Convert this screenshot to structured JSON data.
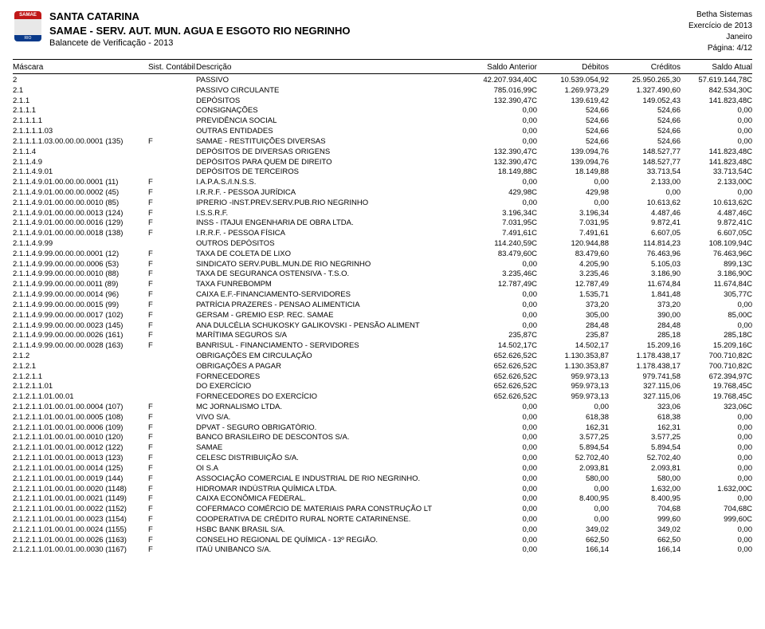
{
  "header": {
    "line1": "SANTA CATARINA",
    "line2": "SAMAE - SERV. AUT. MUN. AGUA E ESGOTO RIO NEGRINHO",
    "line3": "Balancete de Verificação - 2013",
    "logo_top": "SAMAE",
    "logo_bot": "RIO NEGRINHO - SC",
    "right1": "Betha Sistemas",
    "right2": "Exercício de 2013",
    "right3": "Janeiro",
    "right4": "Página: 4/12"
  },
  "columns": {
    "mask": "Máscara",
    "sist": "Sist. Contábil",
    "desc": "Descrição",
    "ant": "Saldo Anterior",
    "deb": "Débitos",
    "cred": "Créditos",
    "atu": "Saldo Atual"
  },
  "rows": [
    {
      "m": "2",
      "s": "",
      "d": "PASSIVO",
      "a": "42.207.934,40C",
      "b": "10.539.054,92",
      "c": "25.950.265,30",
      "t": "57.619.144,78C"
    },
    {
      "m": "2.1",
      "s": "",
      "d": "PASSIVO CIRCULANTE",
      "a": "785.016,99C",
      "b": "1.269.973,29",
      "c": "1.327.490,60",
      "t": "842.534,30C"
    },
    {
      "m": "2.1.1",
      "s": "",
      "d": "DEPÓSITOS",
      "a": "132.390,47C",
      "b": "139.619,42",
      "c": "149.052,43",
      "t": "141.823,48C"
    },
    {
      "m": "2.1.1.1",
      "s": "",
      "d": "CONSIGNAÇÕES",
      "a": "0,00",
      "b": "524,66",
      "c": "524,66",
      "t": "0,00"
    },
    {
      "m": "2.1.1.1.1",
      "s": "",
      "d": "PREVIDÊNCIA SOCIAL",
      "a": "0,00",
      "b": "524,66",
      "c": "524,66",
      "t": "0,00"
    },
    {
      "m": "2.1.1.1.1.03",
      "s": "",
      "d": "OUTRAS ENTIDADES",
      "a": "0,00",
      "b": "524,66",
      "c": "524,66",
      "t": "0,00"
    },
    {
      "m": "2.1.1.1.1.03.00.00.00.0001 (135)",
      "s": "F",
      "d": "SAMAE - RESTITUIÇÕES DIVERSAS",
      "a": "0,00",
      "b": "524,66",
      "c": "524,66",
      "t": "0,00"
    },
    {
      "m": "2.1.1.4",
      "s": "",
      "d": "DEPÓSITOS DE DIVERSAS ORIGENS",
      "a": "132.390,47C",
      "b": "139.094,76",
      "c": "148.527,77",
      "t": "141.823,48C"
    },
    {
      "m": "2.1.1.4.9",
      "s": "",
      "d": "DEPÓSITOS PARA QUEM DE DIREITO",
      "a": "132.390,47C",
      "b": "139.094,76",
      "c": "148.527,77",
      "t": "141.823,48C"
    },
    {
      "m": "2.1.1.4.9.01",
      "s": "",
      "d": "DEPÓSITOS DE TERCEIROS",
      "a": "18.149,88C",
      "b": "18.149,88",
      "c": "33.713,54",
      "t": "33.713,54C"
    },
    {
      "m": "2.1.1.4.9.01.00.00.00.0001 (11)",
      "s": "F",
      "d": "I.A.P.A.S./I.N.S.S.",
      "a": "0,00",
      "b": "0,00",
      "c": "2.133,00",
      "t": "2.133,00C"
    },
    {
      "m": "2.1.1.4.9.01.00.00.00.0002 (45)",
      "s": "F",
      "d": "I.R.R.F.  - PESSOA JURÍDICA",
      "a": "429,98C",
      "b": "429,98",
      "c": "0,00",
      "t": "0,00"
    },
    {
      "m": "2.1.1.4.9.01.00.00.00.0010 (85)",
      "s": "F",
      "d": "IPRERIO -INST.PREV.SERV.PUB.RIO NEGRINHO",
      "a": "0,00",
      "b": "0,00",
      "c": "10.613,62",
      "t": "10.613,62C"
    },
    {
      "m": "2.1.1.4.9.01.00.00.00.0013 (124)",
      "s": "F",
      "d": "I.S.S.R.F.",
      "a": "3.196,34C",
      "b": "3.196,34",
      "c": "4.487,46",
      "t": "4.487,46C"
    },
    {
      "m": "2.1.1.4.9.01.00.00.00.0016 (129)",
      "s": "F",
      "d": "INSS - ITAJUI ENGENHARIA DE OBRA LTDA.",
      "a": "7.031,95C",
      "b": "7.031,95",
      "c": "9.872,41",
      "t": "9.872,41C"
    },
    {
      "m": "2.1.1.4.9.01.00.00.00.0018 (138)",
      "s": "F",
      "d": "I.R.R.F.  - PESSOA FÍSICA",
      "a": "7.491,61C",
      "b": "7.491,61",
      "c": "6.607,05",
      "t": "6.607,05C"
    },
    {
      "m": "2.1.1.4.9.99",
      "s": "",
      "d": "OUTROS DEPÓSITOS",
      "a": "114.240,59C",
      "b": "120.944,88",
      "c": "114.814,23",
      "t": "108.109,94C"
    },
    {
      "m": "2.1.1.4.9.99.00.00.00.0001 (12)",
      "s": "F",
      "d": "TAXA DE COLETA DE LIXO",
      "a": "83.479,60C",
      "b": "83.479,60",
      "c": "76.463,96",
      "t": "76.463,96C"
    },
    {
      "m": "2.1.1.4.9.99.00.00.00.0006 (53)",
      "s": "F",
      "d": "SINDICATO SERV.PUBL.MUN.DE RIO NEGRINHO",
      "a": "0,00",
      "b": "4.205,90",
      "c": "5.105,03",
      "t": "899,13C"
    },
    {
      "m": "2.1.1.4.9.99.00.00.00.0010 (88)",
      "s": "F",
      "d": "TAXA DE SEGURANCA OSTENSIVA - T.S.O.",
      "a": "3.235,46C",
      "b": "3.235,46",
      "c": "3.186,90",
      "t": "3.186,90C"
    },
    {
      "m": "2.1.1.4.9.99.00.00.00.0011 (89)",
      "s": "F",
      "d": "TAXA FUNREBOMPM",
      "a": "12.787,49C",
      "b": "12.787,49",
      "c": "11.674,84",
      "t": "11.674,84C"
    },
    {
      "m": "2.1.1.4.9.99.00.00.00.0014 (96)",
      "s": "F",
      "d": "CAIXA E.F.-FINANCIAMENTO-SERVIDORES",
      "a": "0,00",
      "b": "1.535,71",
      "c": "1.841,48",
      "t": "305,77C"
    },
    {
      "m": "2.1.1.4.9.99.00.00.00.0015 (99)",
      "s": "F",
      "d": "PATRÍCIA PRAZERES - PENSAO ALIMENTICIA",
      "a": "0,00",
      "b": "373,20",
      "c": "373,20",
      "t": "0,00"
    },
    {
      "m": "2.1.1.4.9.99.00.00.00.0017 (102)",
      "s": "F",
      "d": "GERSAM - GREMIO ESP. REC. SAMAE",
      "a": "0,00",
      "b": "305,00",
      "c": "390,00",
      "t": "85,00C"
    },
    {
      "m": "2.1.1.4.9.99.00.00.00.0023 (145)",
      "s": "F",
      "d": "ANA DULCÉLIA SCHUKOSKY GALIKOVSKI - PENSÃO ALIMENT",
      "a": "0,00",
      "b": "284,48",
      "c": "284,48",
      "t": "0,00"
    },
    {
      "m": "2.1.1.4.9.99.00.00.00.0026 (161)",
      "s": "F",
      "d": "MARÍTIMA SEGUROS S/A",
      "a": "235,87C",
      "b": "235,87",
      "c": "285,18",
      "t": "285,18C"
    },
    {
      "m": "2.1.1.4.9.99.00.00.00.0028 (163)",
      "s": "F",
      "d": "BANRISUL - FINANCIAMENTO - SERVIDORES",
      "a": "14.502,17C",
      "b": "14.502,17",
      "c": "15.209,16",
      "t": "15.209,16C"
    },
    {
      "m": "2.1.2",
      "s": "",
      "d": "OBRIGAÇÕES EM CIRCULAÇÃO",
      "a": "652.626,52C",
      "b": "1.130.353,87",
      "c": "1.178.438,17",
      "t": "700.710,82C"
    },
    {
      "m": "2.1.2.1",
      "s": "",
      "d": "OBRIGAÇÕES A PAGAR",
      "a": "652.626,52C",
      "b": "1.130.353,87",
      "c": "1.178.438,17",
      "t": "700.710,82C"
    },
    {
      "m": "2.1.2.1.1",
      "s": "",
      "d": "FORNECEDORES",
      "a": "652.626,52C",
      "b": "959.973,13",
      "c": "979.741,58",
      "t": "672.394,97C"
    },
    {
      "m": "2.1.2.1.1.01",
      "s": "",
      "d": "DO EXERCÍCIO",
      "a": "652.626,52C",
      "b": "959.973,13",
      "c": "327.115,06",
      "t": "19.768,45C"
    },
    {
      "m": "2.1.2.1.1.01.00.01",
      "s": "",
      "d": "FORNECEDORES DO EXERCÍCIO",
      "a": "652.626,52C",
      "b": "959.973,13",
      "c": "327.115,06",
      "t": "19.768,45C"
    },
    {
      "m": "2.1.2.1.1.01.00.01.00.0004 (107)",
      "s": "F",
      "d": "MC JORNALISMO LTDA.",
      "a": "0,00",
      "b": "0,00",
      "c": "323,06",
      "t": "323,06C"
    },
    {
      "m": "2.1.2.1.1.01.00.01.00.0005 (108)",
      "s": "F",
      "d": "VIVO S/A.",
      "a": "0,00",
      "b": "618,38",
      "c": "618,38",
      "t": "0,00"
    },
    {
      "m": "2.1.2.1.1.01.00.01.00.0006 (109)",
      "s": "F",
      "d": "DPVAT - SEGURO OBRIGATÓRIO.",
      "a": "0,00",
      "b": "162,31",
      "c": "162,31",
      "t": "0,00"
    },
    {
      "m": "2.1.2.1.1.01.00.01.00.0010 (120)",
      "s": "F",
      "d": "BANCO BRASILEIRO DE DESCONTOS S/A.",
      "a": "0,00",
      "b": "3.577,25",
      "c": "3.577,25",
      "t": "0,00"
    },
    {
      "m": "2.1.2.1.1.01.00.01.00.0012 (122)",
      "s": "F",
      "d": "SAMAE",
      "a": "0,00",
      "b": "5.894,54",
      "c": "5.894,54",
      "t": "0,00"
    },
    {
      "m": "2.1.2.1.1.01.00.01.00.0013 (123)",
      "s": "F",
      "d": "CELESC DISTRIBUIÇÃO S/A.",
      "a": "0,00",
      "b": "52.702,40",
      "c": "52.702,40",
      "t": "0,00"
    },
    {
      "m": "2.1.2.1.1.01.00.01.00.0014 (125)",
      "s": "F",
      "d": "OI S.A",
      "a": "0,00",
      "b": "2.093,81",
      "c": "2.093,81",
      "t": "0,00"
    },
    {
      "m": "2.1.2.1.1.01.00.01.00.0019 (144)",
      "s": "F",
      "d": "ASSOCIAÇÃO COMERCIAL E INDUSTRIAL DE RIO NEGRINHO.",
      "a": "0,00",
      "b": "580,00",
      "c": "580,00",
      "t": "0,00"
    },
    {
      "m": "2.1.2.1.1.01.00.01.00.0020 (1148)",
      "s": "F",
      "d": "HIDROMAR INDÚSTRIA QUÍMICA LTDA.",
      "a": "0,00",
      "b": "0,00",
      "c": "1.632,00",
      "t": "1.632,00C"
    },
    {
      "m": "2.1.2.1.1.01.00.01.00.0021 (1149)",
      "s": "F",
      "d": "CAIXA ECONÔMICA FEDERAL.",
      "a": "0,00",
      "b": "8.400,95",
      "c": "8.400,95",
      "t": "0,00"
    },
    {
      "m": "2.1.2.1.1.01.00.01.00.0022 (1152)",
      "s": "F",
      "d": "COFERMACO COMÉRCIO DE MATERIAIS PARA CONSTRUÇÃO LT",
      "a": "0,00",
      "b": "0,00",
      "c": "704,68",
      "t": "704,68C"
    },
    {
      "m": "2.1.2.1.1.01.00.01.00.0023 (1154)",
      "s": "F",
      "d": "COOPERATIVA DE CRÉDITO RURAL NORTE CATARINENSE.",
      "a": "0,00",
      "b": "0,00",
      "c": "999,60",
      "t": "999,60C"
    },
    {
      "m": "2.1.2.1.1.01.00.01.00.0024 (1155)",
      "s": "F",
      "d": "HSBC BANK BRASIL S/A.",
      "a": "0,00",
      "b": "349,02",
      "c": "349,02",
      "t": "0,00"
    },
    {
      "m": "2.1.2.1.1.01.00.01.00.0026 (1163)",
      "s": "F",
      "d": "CONSELHO REGIONAL DE QUÍMICA - 13º REGIÃO.",
      "a": "0,00",
      "b": "662,50",
      "c": "662,50",
      "t": "0,00"
    },
    {
      "m": "2.1.2.1.1.01.00.01.00.0030 (1167)",
      "s": "F",
      "d": "ITAÚ  UNIBANCO S/A.",
      "a": "0,00",
      "b": "166,14",
      "c": "166,14",
      "t": "0,00"
    }
  ]
}
